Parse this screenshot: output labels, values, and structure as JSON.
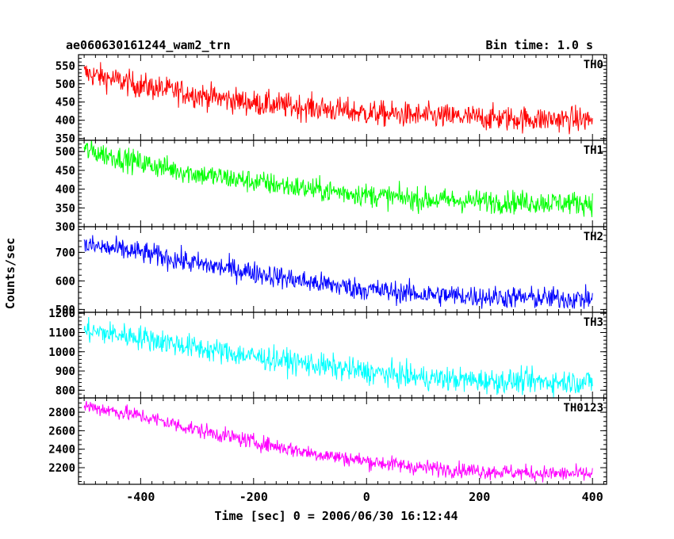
{
  "header": {
    "title": "ae060630161244_wam2_trn",
    "bin_time": "Bin time: 1.0 s"
  },
  "axes": {
    "ylabel": "Counts/sec",
    "xlabel": "Time [sec] 0 = 2006/06/30 16:12:44"
  },
  "chart_data": {
    "type": "line",
    "title": "ae060630161244_wam2_trn",
    "xlabel": "Time [sec] 0 = 2006/06/30 16:12:44",
    "ylabel": "Counts/sec",
    "xlim": [
      -510,
      425
    ],
    "x_ticks": [
      -400,
      -200,
      0,
      200,
      400
    ],
    "x_step": 1,
    "panels": [
      {
        "name": "TH0",
        "color": "#ff0000",
        "ylim": [
          345,
          580
        ],
        "yticks": [
          350,
          400,
          450,
          500,
          550
        ],
        "x_range": [
          -500,
          400
        ],
        "trend": [
          [
            -500,
            530
          ],
          [
            -400,
            495
          ],
          [
            -300,
            470
          ],
          [
            -200,
            447
          ],
          [
            -100,
            435
          ],
          [
            0,
            420
          ],
          [
            100,
            412
          ],
          [
            200,
            407
          ],
          [
            300,
            403
          ],
          [
            400,
            402
          ]
        ],
        "noise_amplitude": 25
      },
      {
        "name": "TH1",
        "color": "#00ff00",
        "ylim": [
          300,
          530
        ],
        "yticks": [
          300,
          350,
          400,
          450,
          500
        ],
        "x_range": [
          -500,
          400
        ],
        "trend": [
          [
            -500,
            505
          ],
          [
            -400,
            470
          ],
          [
            -300,
            440
          ],
          [
            -200,
            420
          ],
          [
            -100,
            400
          ],
          [
            0,
            385
          ],
          [
            100,
            372
          ],
          [
            200,
            368
          ],
          [
            300,
            365
          ],
          [
            400,
            363
          ]
        ],
        "noise_amplitude": 22
      },
      {
        "name": "TH2",
        "color": "#0000ff",
        "ylim": [
          490,
          790
        ],
        "yticks": [
          500,
          600,
          700
        ],
        "x_range": [
          -500,
          400
        ],
        "trend": [
          [
            -500,
            725
          ],
          [
            -400,
            700
          ],
          [
            -300,
            660
          ],
          [
            -200,
            630
          ],
          [
            -100,
            595
          ],
          [
            0,
            570
          ],
          [
            100,
            553
          ],
          [
            200,
            545
          ],
          [
            300,
            540
          ],
          [
            400,
            537
          ]
        ],
        "noise_amplitude": 28
      },
      {
        "name": "TH3",
        "color": "#00ffff",
        "ylim": [
          760,
          1205
        ],
        "yticks": [
          800,
          900,
          1000,
          1100,
          1200
        ],
        "x_range": [
          -500,
          400
        ],
        "trend": [
          [
            -500,
            1110
          ],
          [
            -400,
            1075
          ],
          [
            -300,
            1020
          ],
          [
            -200,
            975
          ],
          [
            -100,
            935
          ],
          [
            0,
            895
          ],
          [
            100,
            865
          ],
          [
            200,
            850
          ],
          [
            300,
            845
          ],
          [
            400,
            843
          ]
        ],
        "noise_amplitude": 45
      },
      {
        "name": "TH0123",
        "color": "#ff00ff",
        "ylim": [
          2020,
          2955
        ],
        "yticks": [
          2200,
          2400,
          2600,
          2800
        ],
        "x_range": [
          -500,
          400
        ],
        "trend": [
          [
            -500,
            2870
          ],
          [
            -400,
            2760
          ],
          [
            -300,
            2610
          ],
          [
            -200,
            2480
          ],
          [
            -100,
            2360
          ],
          [
            0,
            2270
          ],
          [
            100,
            2200
          ],
          [
            200,
            2165
          ],
          [
            300,
            2140
          ],
          [
            400,
            2130
          ]
        ],
        "noise_amplitude": 60
      }
    ]
  }
}
